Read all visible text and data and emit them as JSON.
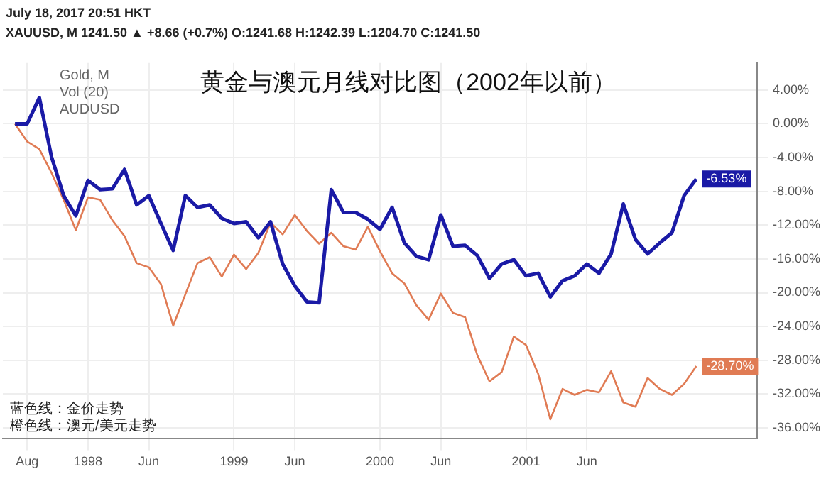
{
  "chart_data": {
    "type": "line",
    "title": "黄金与澳元月线对比图（2002年以前）",
    "annotations": [
      "July 18, 2017 20:51 HKT",
      "XAUUSD, M  1241.50 ▲ +8.66 (+0.7%) O:1241.68 H:1242.39 L:1204.70 C:1241.50",
      "Gold, M",
      "Vol (20)",
      "AUDUSD",
      "蓝色线：金价走势",
      "橙色线：澳元/美元走势"
    ],
    "x": [
      "1997-07",
      "1997-08",
      "1997-09",
      "1997-10",
      "1997-11",
      "1997-12",
      "1998-01",
      "1998-02",
      "1998-03",
      "1998-04",
      "1998-05",
      "1998-06",
      "1998-07",
      "1998-08",
      "1998-09",
      "1998-10",
      "1998-11",
      "1998-12",
      "1999-01",
      "1999-02",
      "1999-03",
      "1999-04",
      "1999-05",
      "1999-06",
      "1999-07",
      "1999-08",
      "1999-09",
      "1999-10",
      "1999-11",
      "1999-12",
      "2000-01",
      "2000-02",
      "2000-03",
      "2000-04",
      "2000-05",
      "2000-06",
      "2000-07",
      "2000-08",
      "2000-09",
      "2000-10",
      "2000-11",
      "2000-12",
      "2001-01",
      "2001-02",
      "2001-03",
      "2001-04",
      "2001-05",
      "2001-06",
      "2001-07",
      "2001-08",
      "2001-09",
      "2001-10",
      "2001-11",
      "2001-12",
      "2002-01",
      "2002-02",
      "2002-03"
    ],
    "series": [
      {
        "color": "#1a1aa6",
        "values": [
          0,
          0,
          3.1,
          -3.9,
          -8.5,
          -10.9,
          -6.7,
          -7.8,
          -7.7,
          -5.4,
          -9.6,
          -8.5,
          -11.8,
          -15.0,
          -8.5,
          -9.9,
          -9.6,
          -11.2,
          -11.8,
          -11.6,
          -13.5,
          -11.6,
          -16.6,
          -19.2,
          -21.1,
          -21.2,
          -7.8,
          -10.5,
          -10.5,
          -11.3,
          -12.5,
          -9.9,
          -14.1,
          -15.7,
          -16.1,
          -10.8,
          -14.5,
          -14.4,
          -15.6,
          -18.3,
          -16.6,
          -16.1,
          -18.0,
          -17.7,
          -20.5,
          -18.6,
          -18.0,
          -16.6,
          -17.7,
          -15.4,
          -9.5,
          -13.7,
          -15.4,
          -14.1,
          -12.9,
          -8.5,
          -6.53
        ],
        "value_labels": [
          null,
          null,
          null,
          null,
          null,
          null,
          null,
          null,
          null,
          null,
          null,
          null,
          null,
          null,
          null,
          null,
          null,
          null,
          null,
          null,
          null,
          null,
          null,
          null,
          null,
          null,
          null,
          null,
          null,
          null,
          null,
          null,
          null,
          null,
          null,
          null,
          null,
          null,
          null,
          null,
          null,
          null,
          null,
          null,
          null,
          null,
          null,
          null,
          null,
          null,
          null,
          null,
          null,
          null,
          null,
          null,
          "-6.53%"
        ]
      },
      {
        "color": "#e07b54",
        "values": [
          0,
          -2.1,
          -3.0,
          -5.8,
          -9.0,
          -12.6,
          -8.7,
          -9.0,
          -11.4,
          -13.3,
          -16.5,
          -17.0,
          -19.0,
          -23.9,
          -20.2,
          -16.5,
          -15.8,
          -18.1,
          -15.5,
          -17.2,
          -15.3,
          -11.7,
          -13.1,
          -10.8,
          -12.7,
          -14.2,
          -12.9,
          -14.5,
          -14.9,
          -12.2,
          -15.1,
          -17.7,
          -18.9,
          -21.5,
          -23.2,
          -20.1,
          -22.4,
          -22.9,
          -27.4,
          -30.5,
          -29.4,
          -25.2,
          -26.2,
          -29.6,
          -35.0,
          -31.4,
          -32.1,
          -31.5,
          -31.8,
          -29.3,
          -33.0,
          -33.5,
          -30.1,
          -31.4,
          -32.1,
          -30.8,
          -28.7
        ],
        "value_labels": [
          null,
          null,
          null,
          null,
          null,
          null,
          null,
          null,
          null,
          null,
          null,
          null,
          null,
          null,
          null,
          null,
          null,
          null,
          null,
          null,
          null,
          null,
          null,
          null,
          null,
          null,
          null,
          null,
          null,
          null,
          null,
          null,
          null,
          null,
          null,
          null,
          null,
          null,
          null,
          null,
          null,
          null,
          null,
          null,
          null,
          null,
          null,
          null,
          null,
          null,
          null,
          null,
          null,
          null,
          null,
          null,
          "-28.70%"
        ]
      }
    ],
    "xlim": [
      "1997-06",
      "2002-08"
    ],
    "xticks": [
      {
        "value": "1997-08",
        "label": "Aug"
      },
      {
        "value": "1998-01",
        "label": "1998"
      },
      {
        "value": "1998-06",
        "label": "Jun"
      },
      {
        "value": "1999-01",
        "label": "1999"
      },
      {
        "value": "1999-06",
        "label": "Jun"
      },
      {
        "value": "2000-01",
        "label": "2000"
      },
      {
        "value": "2000-06",
        "label": "Jun"
      },
      {
        "value": "2001-01",
        "label": "2001"
      },
      {
        "value": "2001-06",
        "label": "Jun"
      }
    ],
    "ylim": [
      -37.3,
      7.2
    ],
    "yticks": [
      {
        "value": 4,
        "label": "4.00%"
      },
      {
        "value": 0,
        "label": "0.00%"
      },
      {
        "value": -4,
        "label": "-4.00%"
      },
      {
        "value": -8,
        "label": "-8.00%"
      },
      {
        "value": -12,
        "label": "-12.00%"
      },
      {
        "value": -16,
        "label": "-16.00%"
      },
      {
        "value": -20,
        "label": "-20.00%"
      },
      {
        "value": -24,
        "label": "-24.00%"
      },
      {
        "value": -28,
        "label": "-28.00%"
      },
      {
        "value": -32,
        "label": "-32.00%"
      },
      {
        "value": -36,
        "label": "-36.00%"
      }
    ],
    "grid": true,
    "legend": false,
    "marker": "none",
    "line_style": "solid"
  }
}
